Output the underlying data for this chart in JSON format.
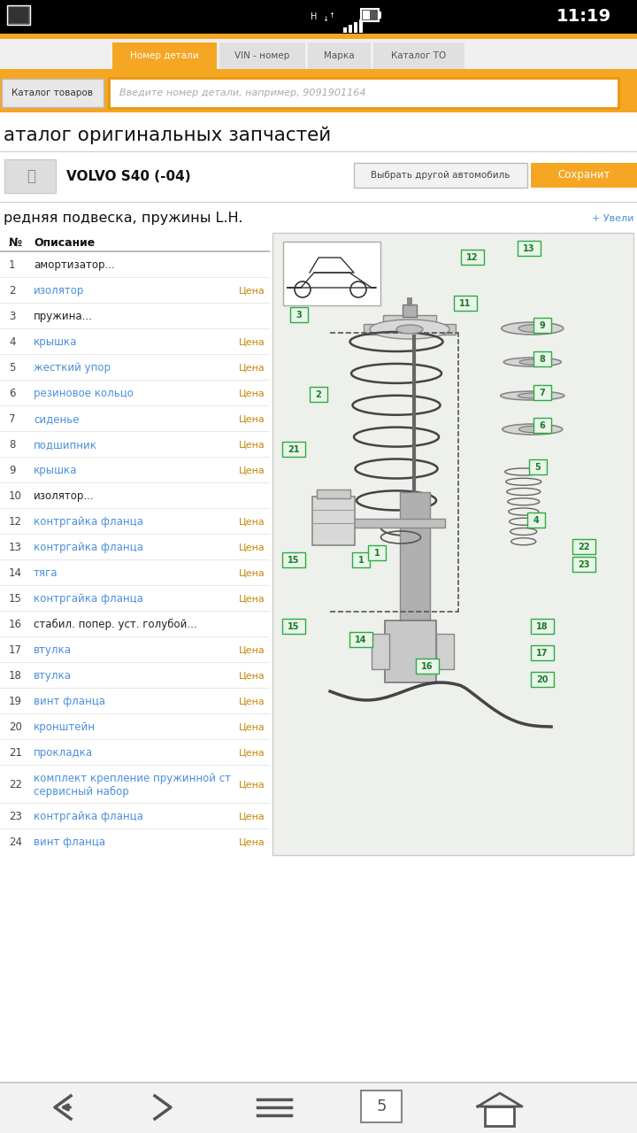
{
  "bg_color": "#ffffff",
  "status_bar_bg": "#000000",
  "status_bar_text": "11:19",
  "orange_color": "#F5A623",
  "orange_dark": "#E8960A",
  "tabs": [
    "Номер детали",
    "VIN - номер",
    "Марка",
    "Каталог ТО"
  ],
  "search_placeholder": "Введите номер детали, например, 9091901164",
  "catalog_menu": "Каталог товаров",
  "page_title": "аталог оригинальных запчастей",
  "car_model": "VOLVO S40 (-04)",
  "btn1_text": "Выбрать другой автомобиль",
  "btn2_text": "Сохранит",
  "section_title": "редняя подвеска, пружины L.H.",
  "zoom_link": "+ Увели",
  "col_num": "№",
  "col_desc": "Описание",
  "parts": [
    {
      "num": "1",
      "desc": "амортизатор...",
      "has_price": false,
      "link": false,
      "two_line": false
    },
    {
      "num": "2",
      "desc": "изолятор",
      "has_price": true,
      "link": true,
      "two_line": false
    },
    {
      "num": "3",
      "desc": "пружина...",
      "has_price": false,
      "link": false,
      "two_line": false
    },
    {
      "num": "4",
      "desc": "крышка",
      "has_price": true,
      "link": true,
      "two_line": false
    },
    {
      "num": "5",
      "desc": "жесткий упор",
      "has_price": true,
      "link": true,
      "two_line": false
    },
    {
      "num": "6",
      "desc": "резиновое кольцо",
      "has_price": true,
      "link": true,
      "two_line": false
    },
    {
      "num": "7",
      "desc": "сиденье",
      "has_price": true,
      "link": true,
      "two_line": false
    },
    {
      "num": "8",
      "desc": "подшипник",
      "has_price": true,
      "link": true,
      "two_line": false
    },
    {
      "num": "9",
      "desc": "крышка",
      "has_price": true,
      "link": true,
      "two_line": false
    },
    {
      "num": "10",
      "desc": "изолятор...",
      "has_price": false,
      "link": false,
      "two_line": false
    },
    {
      "num": "12",
      "desc": "контргайка фланца",
      "has_price": true,
      "link": true,
      "two_line": false
    },
    {
      "num": "13",
      "desc": "контргайка фланца",
      "has_price": true,
      "link": true,
      "two_line": false
    },
    {
      "num": "14",
      "desc": "тяга",
      "has_price": true,
      "link": true,
      "two_line": false
    },
    {
      "num": "15",
      "desc": "контргайка фланца",
      "has_price": true,
      "link": true,
      "two_line": false
    },
    {
      "num": "16",
      "desc": "стабил. попер. уст. голубой...",
      "has_price": false,
      "link": false,
      "two_line": false
    },
    {
      "num": "17",
      "desc": "втулка",
      "has_price": true,
      "link": true,
      "two_line": false
    },
    {
      "num": "18",
      "desc": "втулка",
      "has_price": true,
      "link": true,
      "two_line": false
    },
    {
      "num": "19",
      "desc": "винт фланца",
      "has_price": true,
      "link": true,
      "two_line": false
    },
    {
      "num": "20",
      "desc": "кронштейн",
      "has_price": true,
      "link": true,
      "two_line": false
    },
    {
      "num": "21",
      "desc": "прокладка",
      "has_price": true,
      "link": true,
      "two_line": false
    },
    {
      "num": "22",
      "desc": "комплект крепление пружинной ст",
      "desc2": "сервисный набор",
      "has_price": true,
      "link": true,
      "two_line": true
    },
    {
      "num": "23",
      "desc": "контргайка фланца",
      "has_price": true,
      "link": true,
      "two_line": false
    },
    {
      "num": "24",
      "desc": "винт фланца",
      "has_price": true,
      "link": true,
      "two_line": false
    }
  ],
  "link_color": "#4A90D9",
  "price_color": "#C8860A",
  "text_color": "#222222",
  "diagram_bg": "#eef0ec",
  "diagram_border": "#cccccc"
}
